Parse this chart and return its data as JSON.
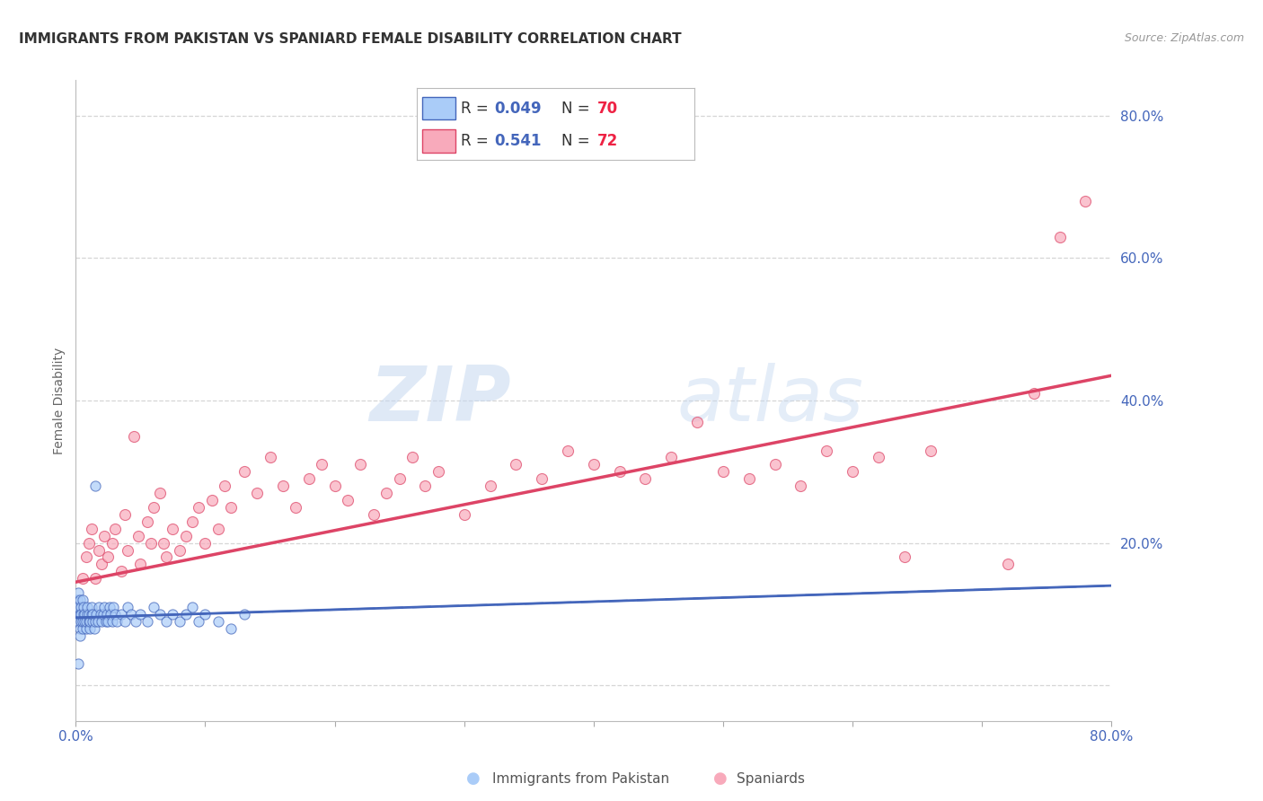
{
  "title": "IMMIGRANTS FROM PAKISTAN VS SPANIARD FEMALE DISABILITY CORRELATION CHART",
  "source": "Source: ZipAtlas.com",
  "ylabel": "Female Disability",
  "xlim": [
    0.0,
    0.8
  ],
  "ylim": [
    -0.05,
    0.85
  ],
  "ytick_labels": [
    "",
    "20.0%",
    "40.0%",
    "60.0%",
    "80.0%"
  ],
  "ytick_values": [
    0.0,
    0.2,
    0.4,
    0.6,
    0.8
  ],
  "xtick_values": [
    0.0,
    0.1,
    0.2,
    0.3,
    0.4,
    0.5,
    0.6,
    0.7,
    0.8
  ],
  "r_pak": 0.049,
  "n_pak": 70,
  "r_spa": 0.541,
  "n_spa": 72,
  "color_pak": "#aaccf8",
  "color_spa": "#f8aabb",
  "line_color_pak": "#4466bb",
  "line_color_spa": "#dd4466",
  "watermark_zip": "ZIP",
  "watermark_atlas": "atlas",
  "background_color": "#ffffff",
  "grid_color": "#cccccc",
  "pak_x": [
    0.001,
    0.001,
    0.002,
    0.002,
    0.002,
    0.003,
    0.003,
    0.003,
    0.003,
    0.004,
    0.004,
    0.004,
    0.005,
    0.005,
    0.005,
    0.006,
    0.006,
    0.007,
    0.007,
    0.008,
    0.008,
    0.009,
    0.009,
    0.01,
    0.01,
    0.011,
    0.011,
    0.012,
    0.012,
    0.013,
    0.013,
    0.014,
    0.015,
    0.015,
    0.016,
    0.017,
    0.018,
    0.019,
    0.02,
    0.021,
    0.022,
    0.023,
    0.024,
    0.025,
    0.026,
    0.027,
    0.028,
    0.029,
    0.03,
    0.032,
    0.035,
    0.038,
    0.04,
    0.043,
    0.046,
    0.05,
    0.055,
    0.06,
    0.065,
    0.07,
    0.075,
    0.08,
    0.085,
    0.09,
    0.095,
    0.1,
    0.11,
    0.12,
    0.13,
    0.002
  ],
  "pak_y": [
    0.1,
    0.12,
    0.09,
    0.11,
    0.13,
    0.08,
    0.1,
    0.12,
    0.07,
    0.09,
    0.11,
    0.1,
    0.12,
    0.08,
    0.09,
    0.1,
    0.11,
    0.09,
    0.1,
    0.08,
    0.09,
    0.1,
    0.11,
    0.09,
    0.1,
    0.08,
    0.09,
    0.1,
    0.11,
    0.09,
    0.1,
    0.08,
    0.09,
    0.28,
    0.1,
    0.09,
    0.11,
    0.1,
    0.09,
    0.1,
    0.11,
    0.09,
    0.1,
    0.09,
    0.11,
    0.1,
    0.09,
    0.11,
    0.1,
    0.09,
    0.1,
    0.09,
    0.11,
    0.1,
    0.09,
    0.1,
    0.09,
    0.11,
    0.1,
    0.09,
    0.1,
    0.09,
    0.1,
    0.11,
    0.09,
    0.1,
    0.09,
    0.08,
    0.1,
    0.03
  ],
  "spa_x": [
    0.005,
    0.008,
    0.01,
    0.012,
    0.015,
    0.018,
    0.02,
    0.022,
    0.025,
    0.028,
    0.03,
    0.035,
    0.038,
    0.04,
    0.045,
    0.048,
    0.05,
    0.055,
    0.058,
    0.06,
    0.065,
    0.068,
    0.07,
    0.075,
    0.08,
    0.085,
    0.09,
    0.095,
    0.1,
    0.105,
    0.11,
    0.115,
    0.12,
    0.13,
    0.14,
    0.15,
    0.16,
    0.17,
    0.18,
    0.19,
    0.2,
    0.21,
    0.22,
    0.23,
    0.24,
    0.25,
    0.26,
    0.27,
    0.28,
    0.3,
    0.32,
    0.34,
    0.36,
    0.38,
    0.4,
    0.42,
    0.44,
    0.46,
    0.48,
    0.5,
    0.52,
    0.54,
    0.56,
    0.58,
    0.6,
    0.62,
    0.64,
    0.66,
    0.72,
    0.74,
    0.76,
    0.78
  ],
  "spa_y": [
    0.15,
    0.18,
    0.2,
    0.22,
    0.15,
    0.19,
    0.17,
    0.21,
    0.18,
    0.2,
    0.22,
    0.16,
    0.24,
    0.19,
    0.35,
    0.21,
    0.17,
    0.23,
    0.2,
    0.25,
    0.27,
    0.2,
    0.18,
    0.22,
    0.19,
    0.21,
    0.23,
    0.25,
    0.2,
    0.26,
    0.22,
    0.28,
    0.25,
    0.3,
    0.27,
    0.32,
    0.28,
    0.25,
    0.29,
    0.31,
    0.28,
    0.26,
    0.31,
    0.24,
    0.27,
    0.29,
    0.32,
    0.28,
    0.3,
    0.24,
    0.28,
    0.31,
    0.29,
    0.33,
    0.31,
    0.3,
    0.29,
    0.32,
    0.37,
    0.3,
    0.29,
    0.31,
    0.28,
    0.33,
    0.3,
    0.32,
    0.18,
    0.33,
    0.17,
    0.41,
    0.63,
    0.68
  ]
}
